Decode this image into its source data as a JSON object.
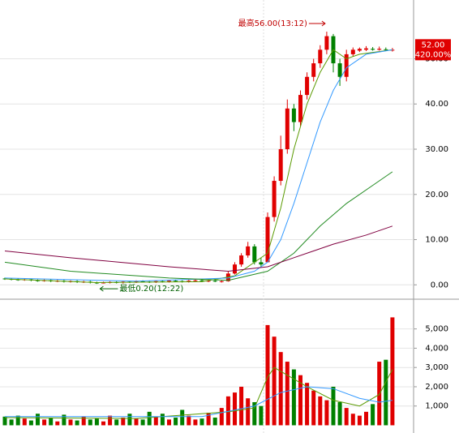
{
  "chart_data": [
    {
      "type": "candlestick",
      "open": [
        1.4,
        1.3,
        1.2,
        1.1,
        1.2,
        1.0,
        0.9,
        1.0,
        0.8,
        0.9,
        0.7,
        0.8,
        0.6,
        0.7,
        0.5,
        0.4,
        0.5,
        0.6,
        0.5,
        0.7,
        0.6,
        0.8,
        0.7,
        0.6,
        0.8,
        0.7,
        0.9,
        0.8,
        0.7,
        0.9,
        1.0,
        0.8,
        0.9,
        0.7,
        0.8,
        2.5,
        4.5,
        6.5,
        8.5,
        5,
        5,
        15,
        23,
        30,
        39,
        36,
        42,
        46,
        49,
        52,
        55,
        49,
        46,
        51,
        51.8,
        52,
        52.2,
        52,
        52.1,
        51.9
      ],
      "high": [
        1.6,
        1.5,
        1.4,
        1.4,
        1.4,
        1.2,
        1.2,
        1.2,
        1.1,
        1.1,
        1.0,
        1.0,
        0.9,
        0.9,
        0.7,
        0.7,
        0.8,
        0.8,
        0.9,
        0.9,
        1.0,
        1.0,
        0.9,
        1.0,
        1.0,
        1.1,
        1.1,
        1.0,
        1.1,
        1.2,
        1.2,
        1.1,
        1.1,
        1.0,
        3,
        5,
        7,
        9.5,
        9,
        6,
        16,
        24,
        33,
        41,
        40,
        43,
        47,
        50,
        53,
        56,
        55.5,
        50,
        52,
        52.5,
        52.5,
        52.8,
        52.6,
        52.7,
        52.5,
        52.4
      ],
      "low": [
        1.1,
        1.0,
        0.9,
        0.9,
        0.8,
        0.7,
        0.7,
        0.6,
        0.6,
        0.5,
        0.5,
        0.4,
        0.4,
        0.3,
        0.2,
        0.3,
        0.3,
        0.3,
        0.3,
        0.4,
        0.4,
        0.5,
        0.4,
        0.4,
        0.5,
        0.5,
        0.6,
        0.5,
        0.5,
        0.7,
        0.6,
        0.6,
        0.6,
        0.5,
        0.7,
        2.3,
        4,
        6,
        4.5,
        4,
        5,
        14,
        22,
        29,
        34,
        35,
        41,
        45,
        48,
        51,
        47,
        44,
        45,
        50.5,
        51.5,
        51.7,
        51.8,
        51.8,
        51.7,
        51.6
      ],
      "close": [
        1.3,
        1.2,
        1.1,
        1.2,
        1.0,
        0.9,
        1.0,
        0.8,
        0.9,
        0.7,
        0.8,
        0.6,
        0.7,
        0.5,
        0.4,
        0.5,
        0.6,
        0.5,
        0.7,
        0.6,
        0.8,
        0.7,
        0.6,
        0.8,
        0.7,
        0.9,
        0.8,
        0.7,
        0.9,
        1.0,
        0.8,
        0.9,
        0.8,
        0.8,
        2.5,
        4.5,
        6.5,
        8.5,
        5,
        4.5,
        15,
        23,
        30,
        39,
        36,
        42,
        46,
        49,
        52,
        55,
        49,
        46,
        51,
        52,
        52.2,
        52.3,
        52,
        52.2,
        52,
        52
      ],
      "up_color": "#e00000",
      "down_color": "#008000",
      "moving_averages": [
        {
          "color": "#5a9a00",
          "x": [
            0,
            14,
            30,
            35,
            38,
            40,
            42,
            44,
            46,
            48,
            50,
            52,
            54,
            59
          ],
          "values": [
            1.3,
            0.5,
            0.7,
            2,
            5,
            7,
            17,
            30,
            40,
            47,
            52,
            50,
            51,
            52
          ]
        },
        {
          "color": "#3399ff",
          "x": [
            0,
            20,
            34,
            38,
            40,
            42,
            44,
            46,
            48,
            50,
            52,
            55,
            59
          ],
          "values": [
            1.5,
            0.8,
            1.5,
            3,
            5,
            10,
            18,
            27,
            36,
            43,
            48,
            51,
            52
          ]
        },
        {
          "color": "#228b22",
          "x": [
            0,
            10,
            25,
            34,
            40,
            44,
            48,
            52,
            56,
            59
          ],
          "values": [
            5,
            3,
            1.5,
            1,
            3,
            7,
            13,
            18,
            22,
            25
          ]
        },
        {
          "color": "#800040",
          "x": [
            0,
            10,
            25,
            34,
            40,
            44,
            50,
            55,
            59
          ],
          "values": [
            7.5,
            6,
            4,
            3,
            4,
            6,
            9,
            11,
            13
          ]
        }
      ],
      "ylim": [
        -3,
        63
      ],
      "yticks": [
        {
          "value": 0,
          "label": "0.00"
        },
        {
          "value": 10,
          "label": "10.00"
        },
        {
          "value": 20,
          "label": "20.00"
        },
        {
          "value": 30,
          "label": "30.00"
        },
        {
          "value": 40,
          "label": "40.00"
        },
        {
          "value": 50,
          "label": "50.00"
        }
      ],
      "grid": true,
      "high_annotation": "最高56.00(13:12)",
      "low_annotation": "最低0.20(12:22)",
      "last_price": {
        "value": 52,
        "label": "52.00"
      },
      "change_label": "420.00%"
    },
    {
      "type": "bar",
      "values": [
        450,
        300,
        500,
        350,
        250,
        600,
        300,
        400,
        200,
        550,
        300,
        250,
        450,
        300,
        350,
        200,
        500,
        300,
        400,
        600,
        350,
        300,
        700,
        450,
        600,
        300,
        400,
        800,
        500,
        300,
        350,
        650,
        400,
        900,
        1500,
        1700,
        2000,
        1400,
        1200,
        1000,
        5200,
        4600,
        3800,
        3300,
        2900,
        2600,
        2200,
        1800,
        1500,
        1300,
        2000,
        1200,
        900,
        600,
        500,
        700,
        1100,
        3300,
        3400,
        5600
      ],
      "moving_averages": [
        {
          "color": "#5a9a00",
          "x": [
            0,
            20,
            34,
            38,
            40,
            41,
            43,
            46,
            50,
            54,
            57,
            59
          ],
          "values": [
            400,
            350,
            700,
            900,
            2500,
            3000,
            2600,
            2000,
            1300,
            1000,
            1600,
            2900
          ]
        },
        {
          "color": "#3399ff",
          "x": [
            0,
            30,
            38,
            42,
            46,
            50,
            54,
            57,
            59
          ],
          "values": [
            450,
            450,
            1000,
            1700,
            2000,
            1900,
            1400,
            1200,
            1300
          ]
        }
      ],
      "ylim": [
        -400,
        6500
      ],
      "yticks": [
        {
          "value": 1000,
          "label": "1,000"
        },
        {
          "value": 2000,
          "label": "2,000"
        },
        {
          "value": 3000,
          "label": "3,000"
        },
        {
          "value": 4000,
          "label": "4,000"
        },
        {
          "value": 5000,
          "label": "5,000"
        }
      ],
      "grid": true
    }
  ]
}
